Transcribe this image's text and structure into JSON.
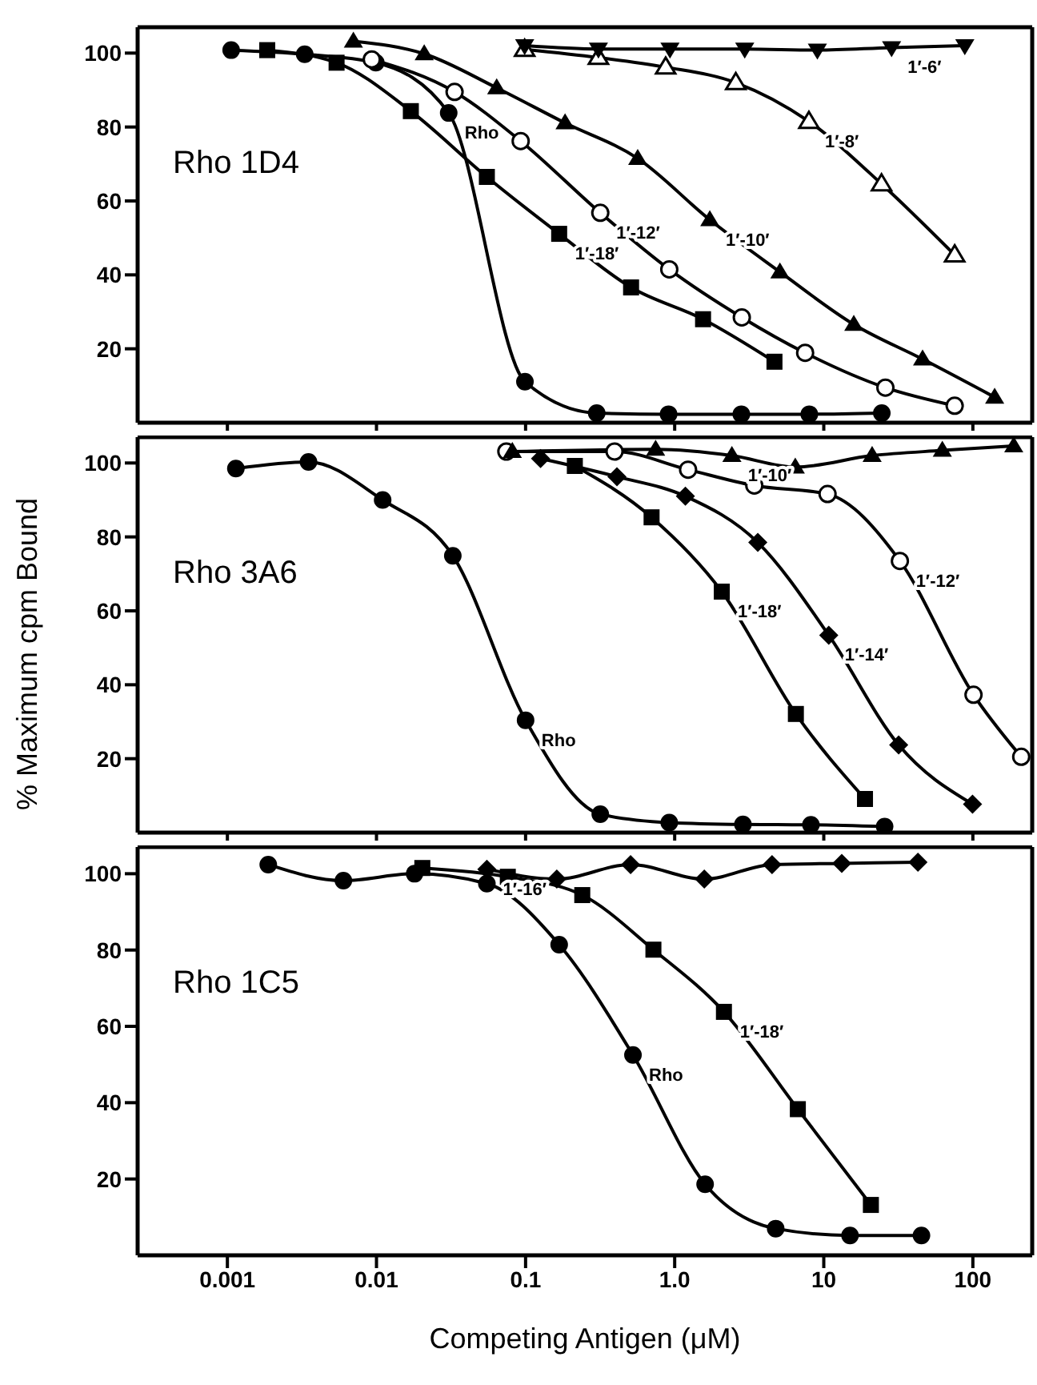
{
  "chart_data": [
    {
      "type": "line",
      "log": "x",
      "xlim": [
        0.00025,
        250
      ],
      "xticks": [
        {
          "value": 0.001,
          "label": null
        },
        {
          "value": 0.01,
          "label": null
        },
        {
          "value": 0.1,
          "label": null
        },
        {
          "value": 1,
          "label": null
        },
        {
          "value": 10,
          "label": null
        },
        {
          "value": 100,
          "label": null
        }
      ],
      "ylim": [
        0,
        107
      ],
      "yticks": [
        20,
        40,
        60,
        80,
        100
      ],
      "tick_labels": "y",
      "annotations": [
        "Rho 1D4"
      ],
      "series": [
        {
          "name": "Rho",
          "color": "#000000",
          "marker": "circle",
          "x": [
            0.00106,
            0.0033,
            0.0099,
            0.0305,
            0.099,
            0.3,
            0.91,
            2.8,
            8.0,
            24.5
          ],
          "values": [
            100.8,
            99.7,
            97.4,
            83.8,
            11.1,
            2.6,
            2.3,
            2.3,
            2.3,
            2.6
          ]
        },
        {
          "name": "1′-18′",
          "color": "#000000",
          "marker": "square",
          "x": [
            0.00185,
            0.0054,
            0.017,
            0.055,
            0.168,
            0.51,
            1.55,
            4.67
          ],
          "values": [
            100.8,
            97.4,
            84.3,
            66.5,
            51.1,
            36.6,
            28.0,
            16.5
          ]
        },
        {
          "name": "1′-12′",
          "color": "#000000",
          "marker": "circle-open",
          "x": [
            0.0093,
            0.0334,
            0.0927,
            0.317,
            0.92,
            2.82,
            7.5,
            25.9,
            75.5
          ],
          "values": [
            98.3,
            89.5,
            76.2,
            56.8,
            41.5,
            28.5,
            18.9,
            9.5,
            4.6
          ]
        },
        {
          "name": "1′-10′",
          "color": "#000000",
          "marker": "triangle",
          "x": [
            0.007,
            0.0209,
            0.064,
            0.184,
            0.565,
            1.72,
            5.08,
            15.9,
            46,
            140
          ],
          "values": [
            103.2,
            99.8,
            90.6,
            81.1,
            71.5,
            54.9,
            40.8,
            26.6,
            17.2,
            6.9
          ]
        },
        {
          "name": "1′-8′",
          "color": "#000000",
          "marker": "triangle-open",
          "x": [
            0.0986,
            0.308,
            0.87,
            2.57,
            7.95,
            24.4,
            75.5
          ],
          "values": [
            101,
            98.8,
            96.2,
            92,
            81.5,
            64.6,
            45.4
          ]
        },
        {
          "name": "1′-6′",
          "color": "#000000",
          "marker": "triangle-down",
          "x": [
            0.0986,
            0.308,
            0.93,
            2.95,
            9.06,
            28.5,
            88.3
          ],
          "values": [
            102,
            101.1,
            101.1,
            101.1,
            100.8,
            101.5,
            102
          ]
        }
      ]
    },
    {
      "type": "line",
      "log": "x",
      "xlim": [
        0.00025,
        250
      ],
      "xticks": [
        {
          "value": 0.001,
          "label": null
        },
        {
          "value": 0.01,
          "label": null
        },
        {
          "value": 0.1,
          "label": null
        },
        {
          "value": 1,
          "label": null
        },
        {
          "value": 10,
          "label": null
        },
        {
          "value": 100,
          "label": null
        }
      ],
      "ylim": [
        0,
        107
      ],
      "yticks": [
        20,
        40,
        60,
        80,
        100
      ],
      "tick_labels": "y",
      "ylabel": "% Maximum cpm Bound",
      "annotations": [
        "Rho 3A6"
      ],
      "series": [
        {
          "name": "Rho",
          "color": "#000000",
          "marker": "circle",
          "x": [
            0.00114,
            0.0035,
            0.011,
            0.0325,
            0.1,
            0.317,
            0.92,
            2.87,
            8.2,
            25.6
          ],
          "values": [
            98.5,
            100.3,
            90.0,
            74.9,
            30.4,
            5.0,
            2.7,
            2.2,
            2.1,
            1.6
          ]
        },
        {
          "name": "1′-18′",
          "color": "#000000",
          "marker": "square",
          "x": [
            0.214,
            0.7,
            2.07,
            6.5,
            18.9
          ],
          "values": [
            99.2,
            85.3,
            65.2,
            32.1,
            9.1
          ]
        },
        {
          "name": "1′-14′",
          "color": "#000000",
          "marker": "diamond",
          "x": [
            0.126,
            0.41,
            1.18,
            3.61,
            10.8,
            31.8,
            99.5
          ],
          "values": [
            101.2,
            96.3,
            91.0,
            78.5,
            53.4,
            23.7,
            7.7
          ]
        },
        {
          "name": "1′-12′",
          "color": "#000000",
          "marker": "circle-open",
          "x": [
            0.0743,
            0.395,
            1.23,
            3.42,
            10.6,
            32.4,
            101,
            211
          ],
          "values": [
            103.1,
            103.1,
            98.2,
            93.9,
            91.6,
            73.5,
            37.3,
            20.5
          ]
        },
        {
          "name": "1′-10′",
          "color": "#000000",
          "marker": "triangle",
          "x": [
            0.0815,
            0.745,
            2.42,
            6.44,
            21.1,
            62.4,
            188
          ],
          "values": [
            103.1,
            103.7,
            102.0,
            98.9,
            102.0,
            103.4,
            104.6
          ]
        }
      ]
    },
    {
      "type": "line",
      "log": "x",
      "xlim": [
        0.00025,
        250
      ],
      "xticks": [
        0.001,
        0.01,
        0.1,
        {
          "value": 1,
          "label": "1.0"
        },
        10,
        100
      ],
      "ylim": [
        0,
        107
      ],
      "yticks": [
        20,
        40,
        60,
        80,
        100
      ],
      "xlabel": "Competing Antigen (μM)",
      "annotations": [
        "Rho 1C5"
      ],
      "series": [
        {
          "name": "Rho",
          "color": "#000000",
          "marker": "circle",
          "x": [
            0.00188,
            0.006,
            0.018,
            0.055,
            0.168,
            0.525,
            1.6,
            4.76,
            15,
            45.2
          ],
          "values": [
            102.4,
            98.2,
            100,
            97.4,
            81.4,
            52.5,
            18.6,
            7.0,
            5.2,
            5.2
          ]
        },
        {
          "name": "1′-18′",
          "color": "#000000",
          "marker": "square",
          "x": [
            0.0203,
            0.076,
            0.24,
            0.72,
            2.14,
            6.7,
            20.7
          ],
          "values": [
            101.5,
            99.2,
            94.4,
            80.1,
            63.8,
            38.3,
            13.2
          ]
        },
        {
          "name": "1′-16′",
          "color": "#000000",
          "marker": "diamond",
          "x": [
            0.055,
            0.162,
            0.506,
            1.58,
            4.5,
            13.2,
            42.8
          ],
          "values": [
            101.2,
            98.6,
            102.4,
            98.6,
            102.4,
            102.7,
            103.0
          ]
        }
      ]
    }
  ]
}
